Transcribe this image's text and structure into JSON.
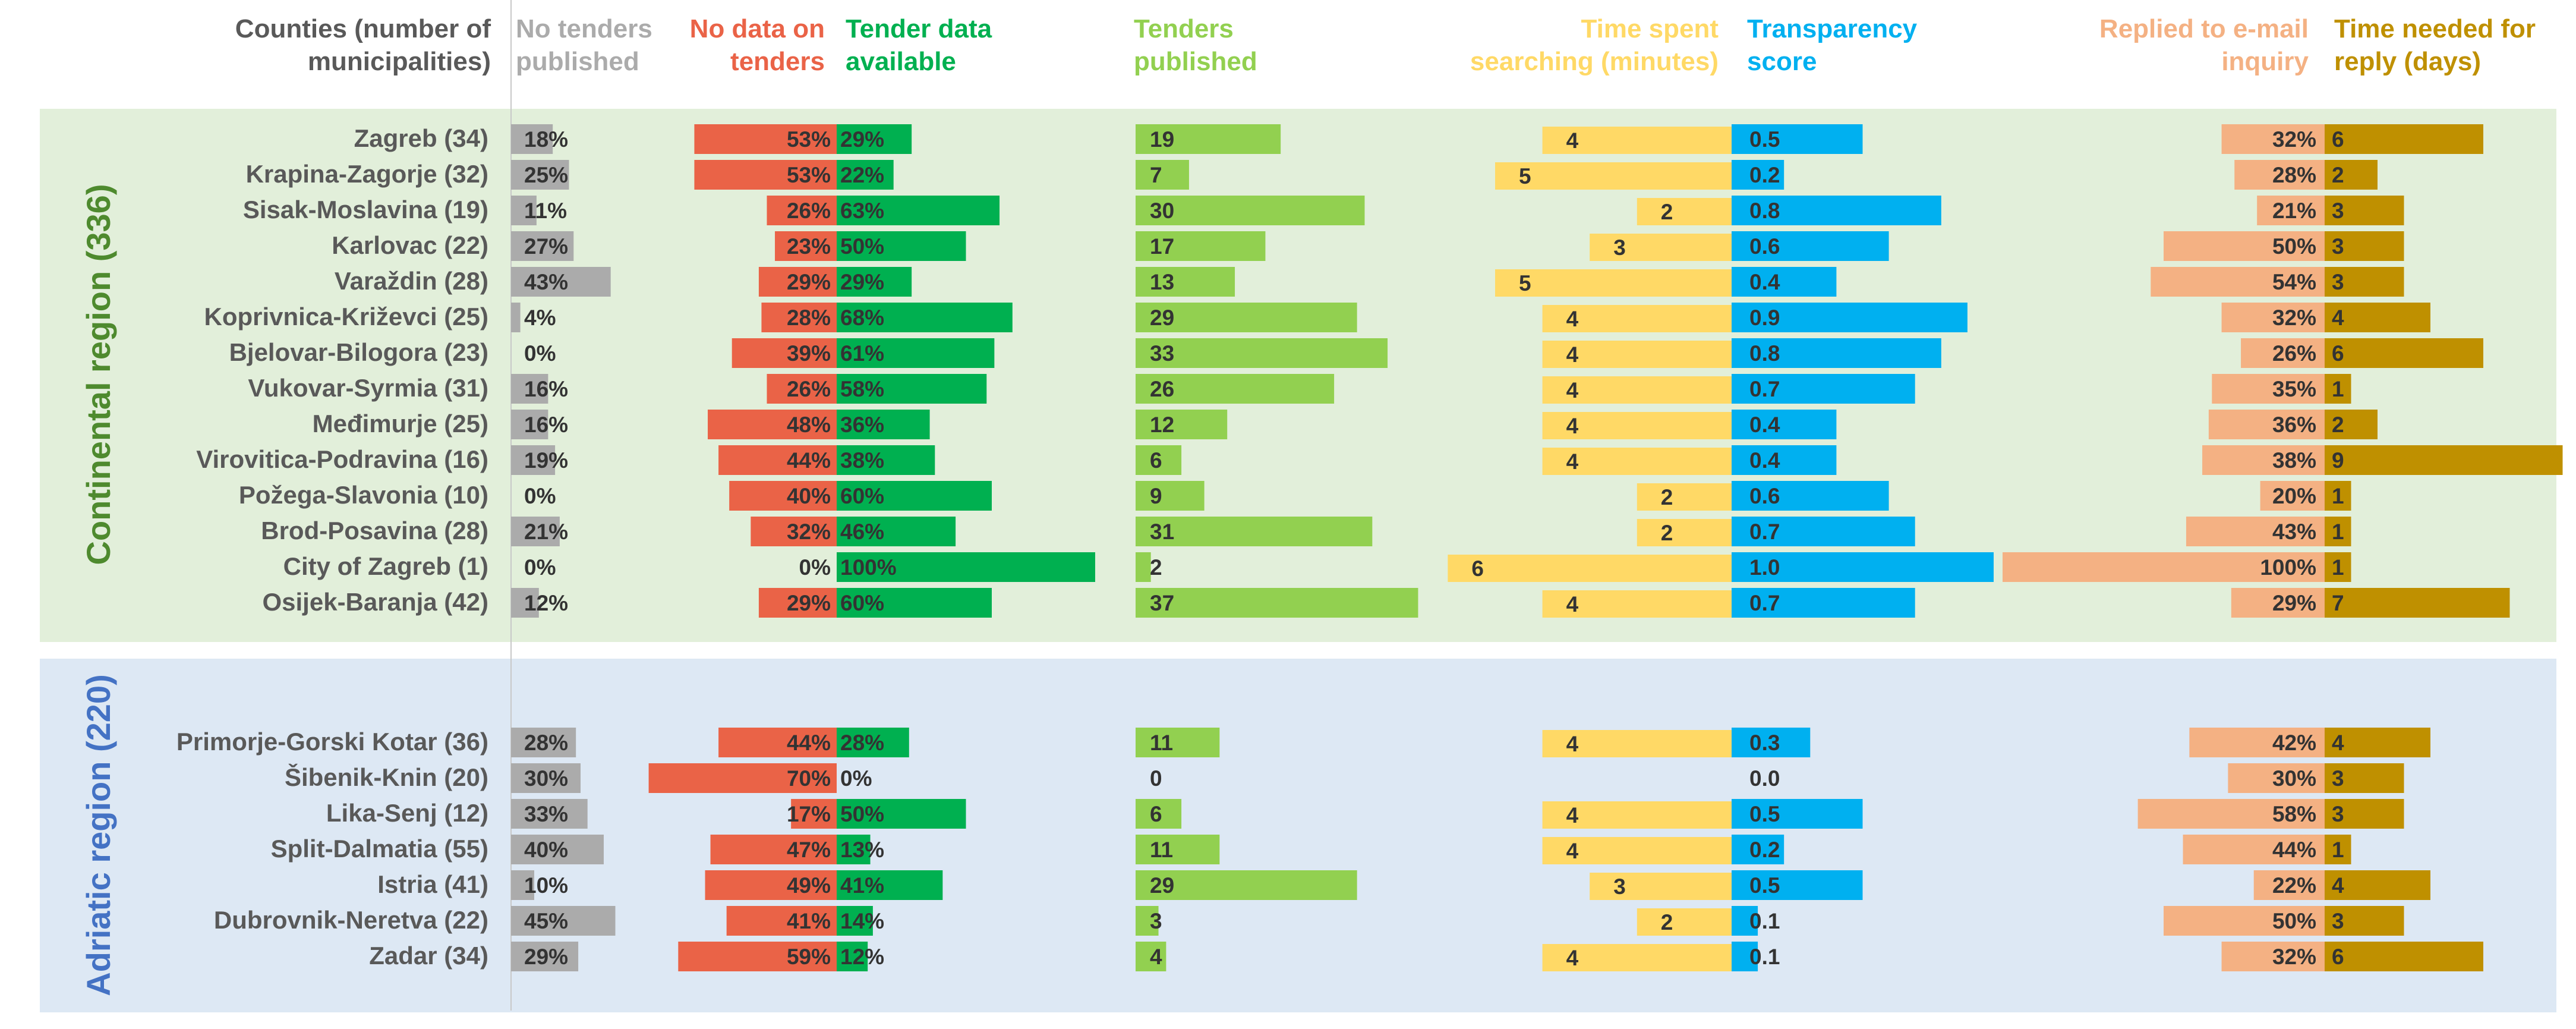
{
  "chart_data": {
    "type": "bar",
    "headers": {
      "counties": [
        "Counties (number of",
        "municipalities)"
      ],
      "no_tenders": [
        "No tenders",
        "published"
      ],
      "no_data": [
        "No data on",
        "tenders"
      ],
      "data_avail": [
        "Tender data",
        "available"
      ],
      "tenders": [
        "Tenders",
        "published"
      ],
      "time": [
        "Time spent",
        "searching (minutes)"
      ],
      "transp": [
        "Transparency",
        "score"
      ],
      "replied": [
        "Replied to e-mail",
        "inquiry"
      ],
      "reply_days": [
        "Time needed for",
        "reply (days)"
      ]
    },
    "colors": {
      "continental_bg": "#e2efda",
      "adriatic_bg": "#dde8f4",
      "continental_title": "#4e8a2e",
      "adriatic_title": "#4472c4",
      "counties_hdr": "#595959",
      "no_tenders": "#ababab",
      "no_data": "#ea6347",
      "data_avail": "#00b050",
      "tenders": "#92d050",
      "time": "#ffd966",
      "transp": "#00b0f0",
      "replied": "#f4b183",
      "reply_days": "#bf9000"
    },
    "regions": [
      {
        "name": "Continental region (336)",
        "key": "continental",
        "counties": [
          {
            "county": "Zagreb (34)",
            "no_tenders": 18,
            "no_data": 53,
            "data_avail": 29,
            "tenders": 19,
            "time": 4,
            "transp": "0.5",
            "replied": 32,
            "reply_days": 6
          },
          {
            "county": "Krapina-Zagorje (32)",
            "no_tenders": 25,
            "no_data": 53,
            "data_avail": 22,
            "tenders": 7,
            "time": 5,
            "transp": "0.2",
            "replied": 28,
            "reply_days": 2
          },
          {
            "county": "Sisak-Moslavina (19)",
            "no_tenders": 11,
            "no_data": 26,
            "data_avail": 63,
            "tenders": 30,
            "time": 2,
            "transp": "0.8",
            "replied": 21,
            "reply_days": 3
          },
          {
            "county": "Karlovac (22)",
            "no_tenders": 27,
            "no_data": 23,
            "data_avail": 50,
            "tenders": 17,
            "time": 3,
            "transp": "0.6",
            "replied": 50,
            "reply_days": 3
          },
          {
            "county": "Varaždin (28)",
            "no_tenders": 43,
            "no_data": 29,
            "data_avail": 29,
            "tenders": 13,
            "time": 5,
            "transp": "0.4",
            "replied": 54,
            "reply_days": 3
          },
          {
            "county": "Koprivnica-Križevci (25)",
            "no_tenders": 4,
            "no_data": 28,
            "data_avail": 68,
            "tenders": 29,
            "time": 4,
            "transp": "0.9",
            "replied": 32,
            "reply_days": 4
          },
          {
            "county": "Bjelovar-Bilogora (23)",
            "no_tenders": 0,
            "no_data": 39,
            "data_avail": 61,
            "tenders": 33,
            "time": 4,
            "transp": "0.8",
            "replied": 26,
            "reply_days": 6
          },
          {
            "county": "Vukovar-Syrmia (31)",
            "no_tenders": 16,
            "no_data": 26,
            "data_avail": 58,
            "tenders": 26,
            "time": 4,
            "transp": "0.7",
            "replied": 35,
            "reply_days": 1
          },
          {
            "county": "Međimurje (25)",
            "no_tenders": 16,
            "no_data": 48,
            "data_avail": 36,
            "tenders": 12,
            "time": 4,
            "transp": "0.4",
            "replied": 36,
            "reply_days": 2
          },
          {
            "county": "Virovitica-Podravina (16)",
            "no_tenders": 19,
            "no_data": 44,
            "data_avail": 38,
            "tenders": 6,
            "time": 4,
            "transp": "0.4",
            "replied": 38,
            "reply_days": 9
          },
          {
            "county": "Požega-Slavonia (10)",
            "no_tenders": 0,
            "no_data": 40,
            "data_avail": 60,
            "tenders": 9,
            "time": 2,
            "transp": "0.6",
            "replied": 20,
            "reply_days": 1
          },
          {
            "county": "Brod-Posavina (28)",
            "no_tenders": 21,
            "no_data": 32,
            "data_avail": 46,
            "tenders": 31,
            "time": 2,
            "transp": "0.7",
            "replied": 43,
            "reply_days": 1
          },
          {
            "county": "City of Zagreb (1)",
            "no_tenders": 0,
            "no_data": 0,
            "data_avail": 100,
            "tenders": 2,
            "time": 6,
            "transp": "1.0",
            "replied": 100,
            "reply_days": 1
          },
          {
            "county": "Osijek-Baranja (42)",
            "no_tenders": 12,
            "no_data": 29,
            "data_avail": 60,
            "tenders": 37,
            "time": 4,
            "transp": "0.7",
            "replied": 29,
            "reply_days": 7
          }
        ]
      },
      {
        "name": "Adriatic region (220)",
        "key": "adriatic",
        "counties": [
          {
            "county": "Primorje-Gorski Kotar (36)",
            "no_tenders": 28,
            "no_data": 44,
            "data_avail": 28,
            "tenders": 11,
            "time": 4,
            "transp": "0.3",
            "replied": 42,
            "reply_days": 4
          },
          {
            "county": "Šibenik-Knin (20)",
            "no_tenders": 30,
            "no_data": 70,
            "data_avail": 0,
            "tenders": 0,
            "time": 0,
            "transp": "0.0",
            "replied": 30,
            "reply_days": 3
          },
          {
            "county": "Lika-Senj (12)",
            "no_tenders": 33,
            "no_data": 17,
            "data_avail": 50,
            "tenders": 6,
            "time": 4,
            "transp": "0.5",
            "replied": 58,
            "reply_days": 3
          },
          {
            "county": "Split-Dalmatia (55)",
            "no_tenders": 40,
            "no_data": 47,
            "data_avail": 13,
            "tenders": 11,
            "time": 4,
            "transp": "0.2",
            "replied": 44,
            "reply_days": 1
          },
          {
            "county": "Istria (41)",
            "no_tenders": 10,
            "no_data": 49,
            "data_avail": 41,
            "tenders": 29,
            "time": 3,
            "transp": "0.5",
            "replied": 22,
            "reply_days": 4
          },
          {
            "county": "Dubrovnik-Neretva (22)",
            "no_tenders": 45,
            "no_data": 41,
            "data_avail": 14,
            "tenders": 3,
            "time": 2,
            "transp": "0.1",
            "replied": 50,
            "reply_days": 3
          },
          {
            "county": "Zadar (34)",
            "no_tenders": 29,
            "no_data": 59,
            "data_avail": 12,
            "tenders": 4,
            "time": 4,
            "transp": "0.1",
            "replied": 32,
            "reply_days": 6
          }
        ]
      }
    ]
  }
}
